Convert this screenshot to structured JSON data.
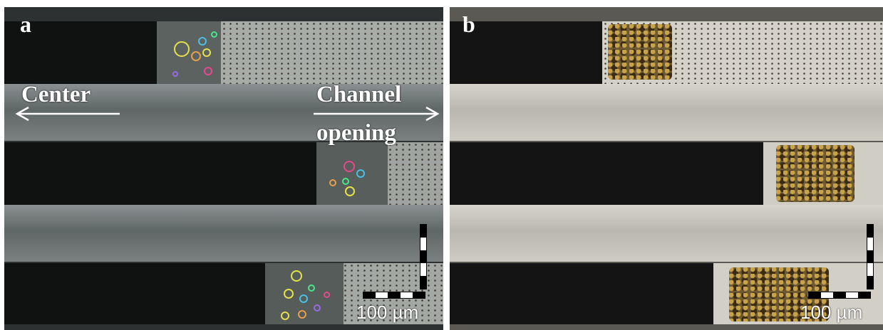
{
  "panels": {
    "a": {
      "letter": "a",
      "left_label": "Center",
      "right_label_line1": "Channel",
      "right_label_line2": "opening",
      "scale_label": "100 µm"
    },
    "b": {
      "letter": "b",
      "scale_label": "100 µm"
    }
  },
  "colors": {
    "label_text": "#ffffff",
    "channel_dark": "#101212",
    "ring_colors": [
      "#e6e04a",
      "#4ac0e6",
      "#e64a8c",
      "#4ae68a",
      "#e6a04a",
      "#9a6ae6"
    ]
  }
}
